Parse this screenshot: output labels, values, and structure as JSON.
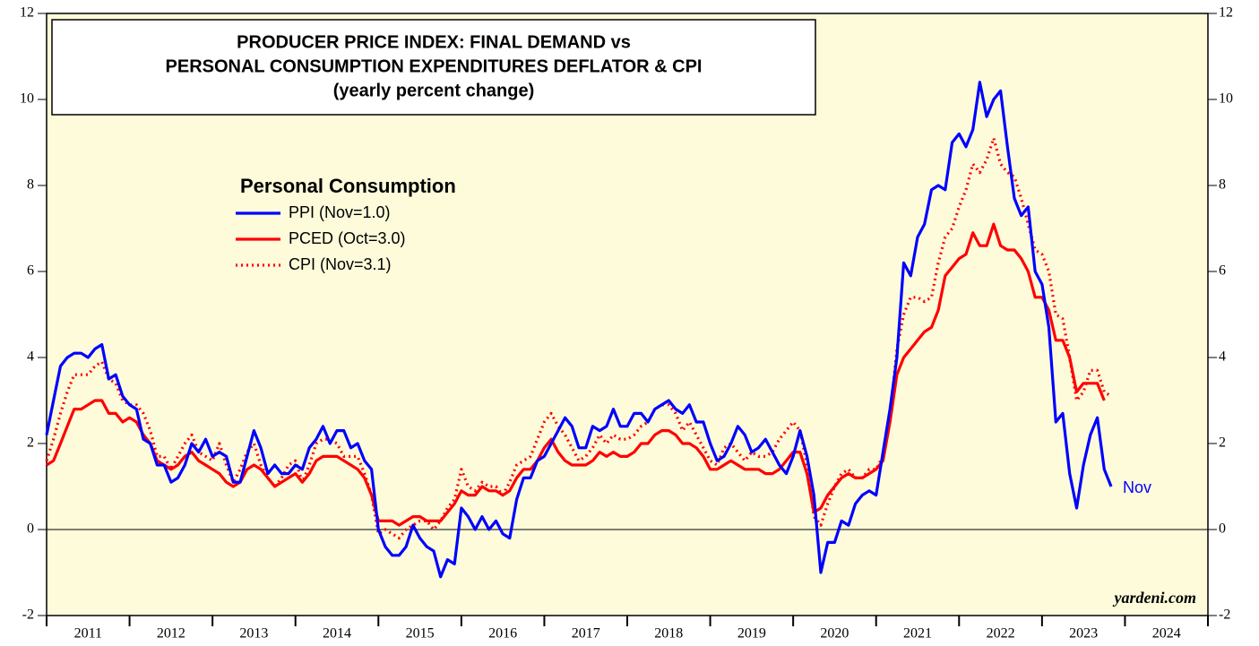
{
  "chart_data": {
    "type": "line",
    "title": [
      "PRODUCER PRICE INDEX: FINAL DEMAND vs",
      "PERSONAL CONSUMPTION EXPENDITURES DEFLATOR & CPI",
      "(yearly percent change)"
    ],
    "legend_title": "Personal Consumption",
    "annotations": [
      "Nov",
      "yardeni.com"
    ],
    "background": "#fdfbda",
    "ylim": [
      -2,
      12
    ],
    "yticks": [
      -2,
      0,
      2,
      4,
      6,
      8,
      10,
      12
    ],
    "xlim": [
      2011,
      2025
    ],
    "xticks": [
      2011,
      2012,
      2013,
      2014,
      2015,
      2016,
      2017,
      2018,
      2019,
      2020,
      2021,
      2022,
      2023,
      2024,
      2025
    ],
    "year_labels": [
      "2011",
      "2012",
      "2013",
      "2014",
      "2015",
      "2016",
      "2017",
      "2018",
      "2019",
      "2020",
      "2021",
      "2022",
      "2023",
      "2024"
    ],
    "x": [
      2011,
      2011.083,
      2011.167,
      2011.25,
      2011.333,
      2011.417,
      2011.5,
      2011.583,
      2011.667,
      2011.75,
      2011.833,
      2011.917,
      2012,
      2012.083,
      2012.167,
      2012.25,
      2012.333,
      2012.417,
      2012.5,
      2012.583,
      2012.667,
      2012.75,
      2012.833,
      2012.917,
      2013,
      2013.083,
      2013.167,
      2013.25,
      2013.333,
      2013.417,
      2013.5,
      2013.583,
      2013.667,
      2013.75,
      2013.833,
      2013.917,
      2014,
      2014.083,
      2014.167,
      2014.25,
      2014.333,
      2014.417,
      2014.5,
      2014.583,
      2014.667,
      2014.75,
      2014.833,
      2014.917,
      2015,
      2015.083,
      2015.167,
      2015.25,
      2015.333,
      2015.417,
      2015.5,
      2015.583,
      2015.667,
      2015.75,
      2015.833,
      2015.917,
      2016,
      2016.083,
      2016.167,
      2016.25,
      2016.333,
      2016.417,
      2016.5,
      2016.583,
      2016.667,
      2016.75,
      2016.833,
      2016.917,
      2017,
      2017.083,
      2017.167,
      2017.25,
      2017.333,
      2017.417,
      2017.5,
      2017.583,
      2017.667,
      2017.75,
      2017.833,
      2017.917,
      2018,
      2018.083,
      2018.167,
      2018.25,
      2018.333,
      2018.417,
      2018.5,
      2018.583,
      2018.667,
      2018.75,
      2018.833,
      2018.917,
      2019,
      2019.083,
      2019.167,
      2019.25,
      2019.333,
      2019.417,
      2019.5,
      2019.583,
      2019.667,
      2019.75,
      2019.833,
      2019.917,
      2020,
      2020.083,
      2020.167,
      2020.25,
      2020.333,
      2020.417,
      2020.5,
      2020.583,
      2020.667,
      2020.75,
      2020.833,
      2020.917,
      2021,
      2021.083,
      2021.167,
      2021.25,
      2021.333,
      2021.417,
      2021.5,
      2021.583,
      2021.667,
      2021.75,
      2021.833,
      2021.917,
      2022,
      2022.083,
      2022.167,
      2022.25,
      2022.333,
      2022.417,
      2022.5,
      2022.583,
      2022.667,
      2022.75,
      2022.833,
      2022.917,
      2023,
      2023.083,
      2023.167,
      2023.25,
      2023.333,
      2023.417,
      2023.5,
      2023.583,
      2023.667,
      2023.75,
      2023.833
    ],
    "series": [
      {
        "name": "PPI (Nov=1.0)",
        "color": "#0000ff",
        "style": "solid",
        "values": [
          2.2,
          3.0,
          3.8,
          4.0,
          4.1,
          4.1,
          4.0,
          4.2,
          4.3,
          3.5,
          3.6,
          3.1,
          2.9,
          2.8,
          2.1,
          2.0,
          1.5,
          1.5,
          1.1,
          1.2,
          1.5,
          2.0,
          1.8,
          2.1,
          1.7,
          1.8,
          1.7,
          1.1,
          1.1,
          1.7,
          2.3,
          1.9,
          1.3,
          1.5,
          1.3,
          1.3,
          1.5,
          1.4,
          1.9,
          2.1,
          2.4,
          2.0,
          2.3,
          2.3,
          1.9,
          2.0,
          1.6,
          1.4,
          0.0,
          -0.4,
          -0.6,
          -0.6,
          -0.4,
          0.1,
          -0.2,
          -0.4,
          -0.5,
          -1.1,
          -0.7,
          -0.8,
          0.5,
          0.3,
          0.0,
          0.3,
          0.0,
          0.2,
          -0.1,
          -0.2,
          0.7,
          1.2,
          1.2,
          1.6,
          1.7,
          2.0,
          2.3,
          2.6,
          2.4,
          1.9,
          1.9,
          2.4,
          2.3,
          2.4,
          2.8,
          2.4,
          2.4,
          2.7,
          2.7,
          2.5,
          2.8,
          2.9,
          3.0,
          2.8,
          2.7,
          2.9,
          2.5,
          2.5,
          2.0,
          1.6,
          1.7,
          2.0,
          2.4,
          2.2,
          1.8,
          1.9,
          2.1,
          1.8,
          1.5,
          1.3,
          1.7,
          2.3,
          1.7,
          0.8,
          -1.0,
          -0.3,
          -0.3,
          0.2,
          0.1,
          0.6,
          0.8,
          0.9,
          0.8,
          1.8,
          2.8,
          4.0,
          6.2,
          5.9,
          6.8,
          7.1,
          7.9,
          8.0,
          7.9,
          9.0,
          9.2,
          8.9,
          9.3,
          10.4,
          9.6,
          10.0,
          10.2,
          8.9,
          7.7,
          7.3,
          7.5,
          6.0,
          5.7,
          4.7,
          2.5,
          2.7,
          1.3,
          0.5,
          1.5,
          2.2,
          2.6,
          1.4,
          1.0
        ]
      },
      {
        "name": "PCED (Oct=3.0)",
        "color": "#ff0000",
        "style": "solid",
        "values": [
          1.5,
          1.6,
          2.0,
          2.4,
          2.8,
          2.8,
          2.9,
          3.0,
          3.0,
          2.7,
          2.7,
          2.5,
          2.6,
          2.5,
          2.2,
          2.0,
          1.6,
          1.5,
          1.4,
          1.5,
          1.7,
          1.8,
          1.6,
          1.5,
          1.4,
          1.3,
          1.1,
          1.0,
          1.1,
          1.4,
          1.5,
          1.4,
          1.2,
          1.0,
          1.1,
          1.2,
          1.3,
          1.1,
          1.3,
          1.6,
          1.7,
          1.7,
          1.7,
          1.6,
          1.5,
          1.4,
          1.2,
          0.8,
          0.2,
          0.2,
          0.2,
          0.1,
          0.2,
          0.3,
          0.3,
          0.2,
          0.2,
          0.2,
          0.4,
          0.6,
          0.9,
          0.8,
          0.8,
          1.0,
          0.9,
          0.9,
          0.8,
          0.9,
          1.2,
          1.4,
          1.4,
          1.6,
          1.9,
          2.1,
          1.8,
          1.6,
          1.5,
          1.5,
          1.5,
          1.6,
          1.8,
          1.7,
          1.8,
          1.7,
          1.7,
          1.8,
          2.0,
          2.0,
          2.2,
          2.3,
          2.3,
          2.2,
          2.0,
          2.0,
          1.9,
          1.7,
          1.4,
          1.4,
          1.5,
          1.6,
          1.5,
          1.4,
          1.4,
          1.4,
          1.3,
          1.3,
          1.4,
          1.6,
          1.8,
          1.8,
          1.3,
          0.4,
          0.5,
          0.8,
          1.0,
          1.2,
          1.3,
          1.2,
          1.2,
          1.3,
          1.4,
          1.6,
          2.5,
          3.6,
          4.0,
          4.2,
          4.4,
          4.6,
          4.7,
          5.1,
          5.9,
          6.1,
          6.3,
          6.4,
          6.9,
          6.6,
          6.6,
          7.1,
          6.6,
          6.5,
          6.5,
          6.3,
          6.0,
          5.4,
          5.4,
          5.1,
          4.4,
          4.4,
          4.0,
          3.2,
          3.4,
          3.4,
          3.4,
          3.0,
          null
        ]
      },
      {
        "name": "CPI (Nov=3.1)",
        "color": "#ff0000",
        "style": "dotted",
        "values": [
          1.6,
          2.1,
          2.7,
          3.2,
          3.6,
          3.6,
          3.6,
          3.8,
          3.9,
          3.5,
          3.4,
          3.0,
          2.9,
          2.9,
          2.7,
          2.3,
          1.7,
          1.7,
          1.4,
          1.7,
          2.0,
          2.2,
          1.8,
          1.7,
          1.6,
          2.0,
          1.5,
          1.1,
          1.4,
          1.8,
          2.0,
          1.5,
          1.2,
          1.0,
          1.2,
          1.5,
          1.6,
          1.1,
          1.5,
          2.0,
          2.1,
          2.1,
          2.0,
          1.7,
          1.7,
          1.7,
          1.3,
          0.8,
          -0.1,
          0.0,
          -0.1,
          -0.2,
          0.0,
          0.1,
          0.2,
          0.2,
          0.0,
          0.2,
          0.5,
          0.7,
          1.4,
          1.0,
          0.9,
          1.1,
          1.0,
          1.0,
          0.8,
          1.1,
          1.5,
          1.6,
          1.7,
          2.1,
          2.5,
          2.7,
          2.4,
          2.2,
          1.9,
          1.6,
          1.7,
          1.9,
          2.2,
          2.0,
          2.2,
          2.1,
          2.1,
          2.2,
          2.4,
          2.5,
          2.8,
          2.9,
          2.9,
          2.7,
          2.3,
          2.5,
          2.2,
          1.9,
          1.6,
          1.5,
          1.9,
          2.0,
          1.8,
          1.6,
          1.8,
          1.7,
          1.7,
          1.8,
          2.1,
          2.3,
          2.5,
          2.3,
          1.5,
          0.3,
          0.1,
          0.6,
          1.0,
          1.3,
          1.4,
          1.2,
          1.2,
          1.4,
          1.4,
          1.7,
          2.6,
          4.2,
          5.0,
          5.4,
          5.4,
          5.3,
          5.4,
          6.2,
          6.8,
          7.0,
          7.5,
          7.9,
          8.5,
          8.3,
          8.6,
          9.1,
          8.5,
          8.3,
          8.2,
          7.7,
          7.1,
          6.5,
          6.4,
          6.0,
          5.0,
          4.9,
          4.0,
          3.0,
          3.2,
          3.7,
          3.7,
          3.2,
          3.1
        ]
      }
    ]
  }
}
